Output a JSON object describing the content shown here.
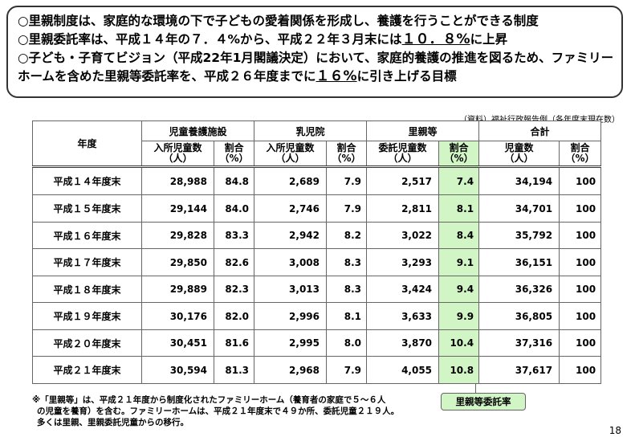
{
  "summary": {
    "line1": "○里親制度は、家庭的な環境の下で子どもの愛着関係を形成し、養護を行うことができる制度",
    "line2_pre": "○里親委託率は、平成１４年の７．４%から、平成２２年３月末には",
    "line2_em": "１０．８%",
    "line2_post": "に上昇",
    "line3": "○子ども・子育てビジョン（平成22年1月閣議決定）において、家庭的養護の推進を図るため、ファミリー",
    "line4_pre": "ホームを含めた里親等委託率を、平成２６年度までに",
    "line4_em": "１６%",
    "line4_post": "に引き上げる目標"
  },
  "source": "（資料）福祉行政報告例（各年度末現在数）",
  "table": {
    "year_header": "年度",
    "groups": [
      "児童養護施設",
      "乳児院",
      "里親等",
      "合計"
    ],
    "subheaders": [
      [
        "入所児童数",
        "（人）"
      ],
      [
        "割合",
        "（%）"
      ],
      [
        "入所児童数",
        "（人）"
      ],
      [
        "割合",
        "（%）"
      ],
      [
        "委託児童数",
        "（人）"
      ],
      [
        "割合",
        "（%）"
      ],
      [
        "児童数",
        "（人）"
      ],
      [
        "割合",
        "（%）"
      ]
    ],
    "rows": [
      {
        "year": "平成１４年度末",
        "cells": [
          "28,988",
          "84.8",
          "2,689",
          "7.9",
          "2,517",
          "7.4",
          "34,194",
          "100"
        ]
      },
      {
        "year": "平成１５年度末",
        "cells": [
          "29,144",
          "84.0",
          "2,746",
          "7.9",
          "2,811",
          "8.1",
          "34,701",
          "100"
        ]
      },
      {
        "year": "平成１６年度末",
        "cells": [
          "29,828",
          "83.3",
          "2,942",
          "8.2",
          "3,022",
          "8.4",
          "35,792",
          "100"
        ]
      },
      {
        "year": "平成１７年度末",
        "cells": [
          "29,850",
          "82.6",
          "3,008",
          "8.3",
          "3,293",
          "9.1",
          "36,151",
          "100"
        ]
      },
      {
        "year": "平成１８年度末",
        "cells": [
          "29,889",
          "82.3",
          "3,013",
          "8.3",
          "3,424",
          "9.4",
          "36,326",
          "100"
        ]
      },
      {
        "year": "平成１９年度末",
        "cells": [
          "30,176",
          "82.0",
          "2,996",
          "8.1",
          "3,633",
          "9.9",
          "36,805",
          "100"
        ]
      },
      {
        "year": "平成２０年度末",
        "cells": [
          "30,451",
          "81.6",
          "2,995",
          "8.0",
          "3,870",
          "10.4",
          "37,316",
          "100"
        ]
      },
      {
        "year": "平成２１年度末",
        "cells": [
          "30,594",
          "81.3",
          "2,968",
          "7.9",
          "4,055",
          "10.8",
          "37,617",
          "100"
        ]
      }
    ]
  },
  "note": {
    "line1": "※「里親等」は、平成２１年度から制度化されたファミリーホーム（養育者の家庭で５～６人",
    "line2": "の児童を養育）を含む。ファミリーホームは、平成２１年度末で４９か所、委託児童２１９人。",
    "line3": "多くは里親、里親委託児童からの移行。"
  },
  "badge": "里親等委託率",
  "page_number": "18",
  "colors": {
    "highlight": "#d2f5c6"
  }
}
